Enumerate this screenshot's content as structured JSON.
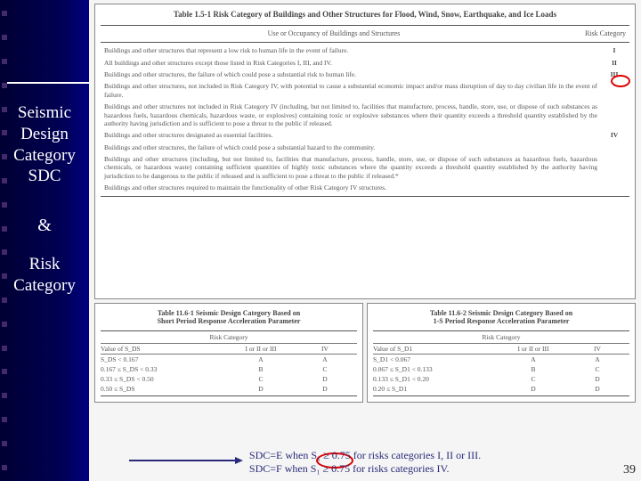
{
  "sidebar": {
    "title_lines": [
      "Seismic",
      "Design",
      "Category",
      "SDC"
    ],
    "amp": "&",
    "title2_lines": [
      "Risk",
      "Category"
    ]
  },
  "table1": {
    "title": "Table 1.5-1 Risk Category of Buildings and Other Structures for Flood, Wind, Snow, Earthquake, and Ice Loads",
    "head_left": "Use or Occupancy of Buildings and Structures",
    "head_right": "Risk Category",
    "rows": [
      {
        "txt": "Buildings and other structures that represent a low risk to human life in the event of failure.",
        "rc": "I"
      },
      {
        "txt": "All buildings and other structures except those listed in Risk Categories I, III, and IV.",
        "rc": "II"
      },
      {
        "txt": "Buildings and other structures, the failure of which could pose a substantial risk to human life.",
        "rc": "III"
      },
      {
        "txt": "Buildings and other structures, not included in Risk Category IV, with potential to cause a substantial economic impact and/or mass disruption of day to day civilian life in the event of failure.",
        "rc": ""
      },
      {
        "txt": "Buildings and other structures not included in Risk Category IV (including, but not limited to, facilities that manufacture, process, handle, store, use, or dispose of such substances as hazardous fuels, hazardous chemicals, hazardous waste, or explosives) containing toxic or explosive substances where their quantity exceeds a threshold quantity established by the authority having jurisdiction and is sufficient to pose a threat to the public if released.",
        "rc": ""
      },
      {
        "txt": "Buildings and other structures designated as essential facilities.",
        "rc": "IV"
      },
      {
        "txt": "Buildings and other structures, the failure of which could pose a substantial hazard to the community.",
        "rc": ""
      },
      {
        "txt": "Buildings and other structures (including, but not limited to, facilities that manufacture, process, handle, store, use, or dispose of such substances as hazardous fuels, hazardous chemicals, or hazardous waste) containing sufficient quantities of highly toxic substances where the quantity exceeds a threshold quantity established by the authority having jurisdiction to be dangerous to the public if released and is sufficient to pose a threat to the public if released.*",
        "rc": ""
      },
      {
        "txt": "Buildings and other structures required to maintain the functionality of other Risk Category IV structures.",
        "rc": ""
      }
    ]
  },
  "table2a": {
    "title1": "Table 11.6-1 Seismic Design Category Based on",
    "title2": "Short Period Response Acceleration Parameter",
    "subhead": "Risk Category",
    "col1_head": "Value of S_DS",
    "col2_head": "I or II or III",
    "col3_head": "IV",
    "rows": [
      {
        "c1": "S_DS < 0.167",
        "c2": "A",
        "c3": "A"
      },
      {
        "c1": "0.167 ≤ S_DS < 0.33",
        "c2": "B",
        "c3": "C"
      },
      {
        "c1": "0.33 ≤ S_DS < 0.50",
        "c2": "C",
        "c3": "D"
      },
      {
        "c1": "0.50 ≤ S_DS",
        "c2": "D",
        "c3": "D"
      }
    ]
  },
  "table2b": {
    "title1": "Table 11.6-2 Seismic Design Category Based on",
    "title2": "1-S Period Response Acceleration Parameter",
    "subhead": "Risk Category",
    "col1_head": "Value of S_D1",
    "col2_head": "I or II or III",
    "col3_head": "IV",
    "rows": [
      {
        "c1": "S_D1 < 0.067",
        "c2": "A",
        "c3": "A"
      },
      {
        "c1": "0.067 ≤ S_D1 < 0.133",
        "c2": "B",
        "c3": "C"
      },
      {
        "c1": "0.133 ≤ S_D1 < 0.20",
        "c2": "C",
        "c3": "D"
      },
      {
        "c1": "0.20 ≤ S_D1",
        "c2": "D",
        "c3": "D"
      }
    ]
  },
  "footer": {
    "line1": "SDC=E when S₁ ≥ 0.75 for risks categories I, II or III.",
    "line2": "SDC=F when S₁ ≥ 0.75 for risks categories IV."
  },
  "pagenum": "39",
  "colors": {
    "sidebar_bg_dark": "#000033",
    "sidebar_bg_light": "#000080",
    "accent_red": "#d00000",
    "footer_text": "#2a2a7a"
  }
}
